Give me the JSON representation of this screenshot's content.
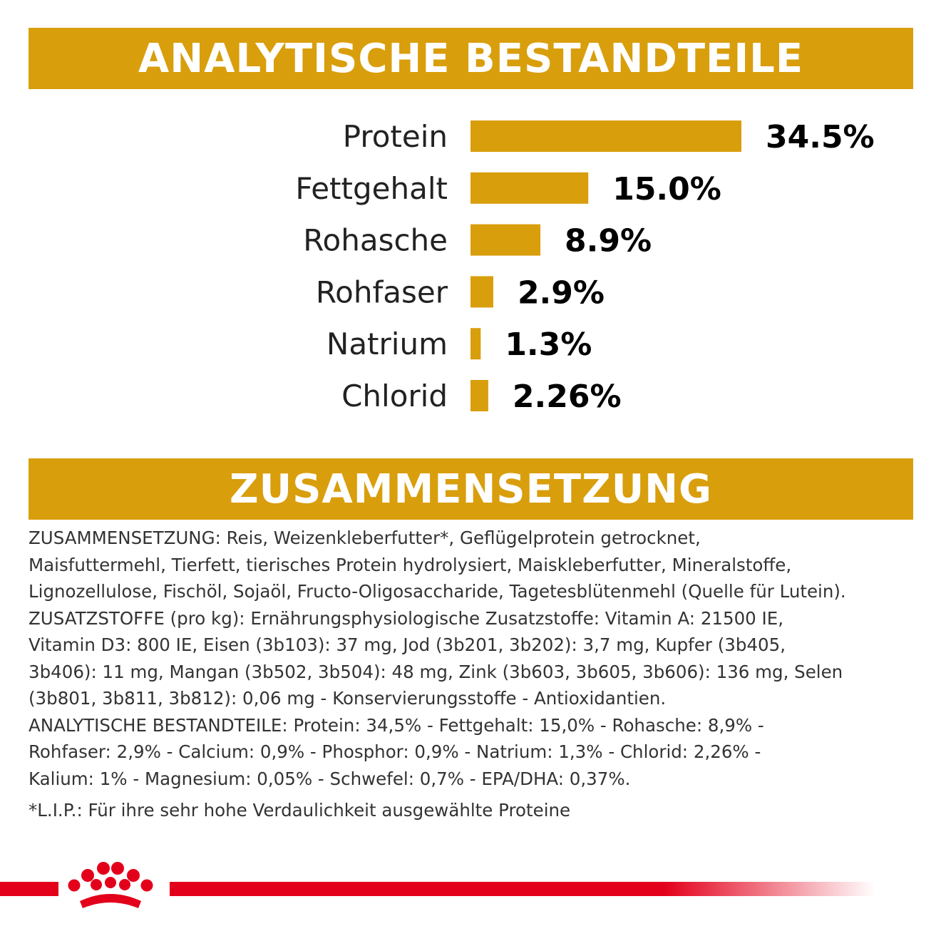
{
  "headings": {
    "analytics": "ANALYTISCHE BESTANDTEILE",
    "composition": "ZUSAMMENSETZUNG"
  },
  "chart_data": {
    "type": "bar",
    "orientation": "horizontal",
    "title": "ANALYTISCHE BESTANDTEILE",
    "categories": [
      "Protein",
      "Fettgehalt",
      "Rohasche",
      "Rohfaser",
      "Natrium",
      "Chlorid"
    ],
    "values": [
      34.5,
      15.0,
      8.9,
      2.9,
      1.3,
      2.26
    ],
    "value_labels": [
      "34.5%",
      "15.0%",
      "8.9%",
      "2.9%",
      "1.3%",
      "2.26%"
    ],
    "unit": "%",
    "xlim": [
      0,
      34.5
    ],
    "grid": false,
    "legend": "none",
    "bar_color": "#d99e0c"
  },
  "composition_lines": [
    "ZUSAMMENSETZUNG: Reis, Weizenkleberfutter*, Geflügelprotein getrocknet,",
    "Maisfuttermehl, Tierfett, tierisches Protein hydrolysiert, Maiskleberfutter, Mineralstoffe,",
    "Lignozellulose, Fischöl, Sojaöl, Fructo-Oligosaccharide, Tagetesblütenmehl (Quelle für Lutein).",
    "ZUSATZSTOFFE (pro kg): Ernährungsphysiologische Zusatzstoffe: Vitamin A: 21500 IE,",
    "Vitamin D3: 800 IE, Eisen (3b103): 37 mg, Jod (3b201, 3b202): 3,7 mg, Kupfer (3b405,",
    "3b406): 11 mg, Mangan (3b502, 3b504): 48 mg, Zink (3b603, 3b605, 3b606): 136 mg, Selen",
    "(3b801, 3b811, 3b812): 0,06 mg - Konservierungsstoffe - Antioxidantien.",
    "ANALYTISCHE BESTANDTEILE: Protein: 34,5% - Fettgehalt: 15,0% - Rohasche: 8,9% -",
    "Rohfaser: 2,9% - Calcium: 0,9% - Phosphor: 0,9% - Natrium: 1,3% - Chlorid: 2,26% -",
    "Kalium: 1% - Magnesium: 0,05% - Schwefel: 0,7% - EPA/DHA: 0,37%."
  ],
  "footnote": "*L.I.P.: Für ihre sehr hohe Verdaulichkeit ausgewählte Proteine",
  "brand": {
    "logo_icon": "royal-canin-crown-icon",
    "color": "#e3001b"
  }
}
